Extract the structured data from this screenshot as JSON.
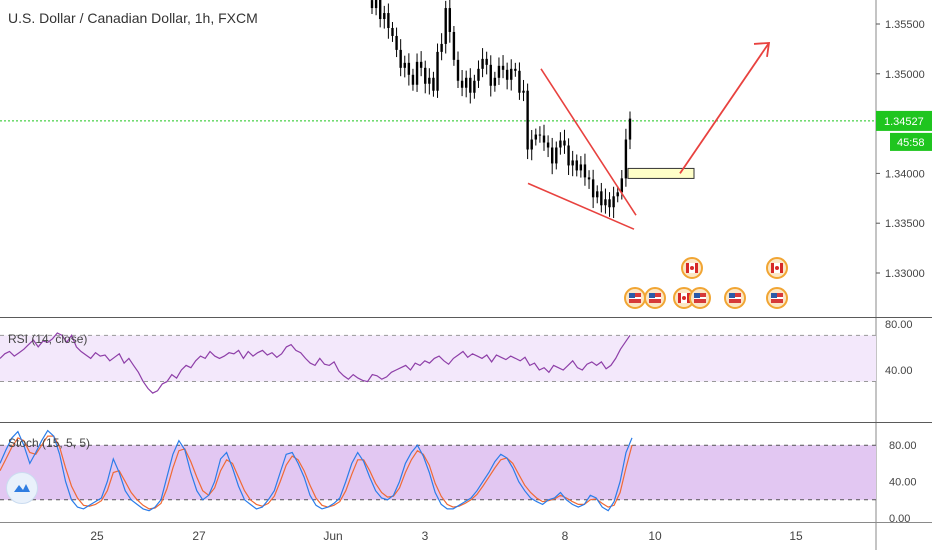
{
  "header": {
    "title": "U.S. Dollar / Canadian Dollar, 1h, FXCM"
  },
  "indicators": {
    "rsi_label": "RSI (14, close)",
    "stoch_label": "Stoch (15, 5, 5)"
  },
  "price_badge": {
    "price": "1.34527",
    "countdown": "45:58"
  },
  "colors": {
    "candle": "#000000",
    "trend": "#e8423f",
    "rsi_line": "#8e3fa8",
    "rsi_band": "#f3e8fb",
    "stoch_band": "#e2c7f2",
    "k_line": "#2b7de9",
    "d_line": "#f06a35",
    "price_line": "#1fc51f",
    "zone_fill": "#ffffc8"
  },
  "chart_data": [
    {
      "type": "candlestick",
      "title": "U.S. Dollar / Canadian Dollar, 1h, FXCM",
      "y_ticks": [
        "1.35500",
        "1.35000",
        "1.34000",
        "1.33500",
        "1.33000"
      ],
      "x_ticks": [
        "25",
        "27",
        "Jun",
        "3",
        "8",
        "10",
        "15"
      ],
      "last_price": 1.34527,
      "ylim": [
        1.3265,
        1.3575
      ],
      "grid": false,
      "description_marks": {
        "falling_wedge": {
          "upper": [
            [
              1.3505,
              "Jun 7"
            ],
            [
              1.3358,
              "Jun 9"
            ]
          ],
          "lower": [
            [
              1.339,
              "Jun 7"
            ],
            [
              1.3344,
              "Jun 9"
            ]
          ]
        },
        "projection_arrow": {
          "from": 1.34,
          "to": 1.3531
        },
        "support_zone": [
          1.3395,
          1.3405
        ]
      },
      "closes": [
        1.3566,
        1.3578,
        1.3555,
        1.3561,
        1.3546,
        1.3538,
        1.3524,
        1.3506,
        1.3511,
        1.3499,
        1.3489,
        1.3512,
        1.3506,
        1.349,
        1.3496,
        1.3483,
        1.3522,
        1.353,
        1.3566,
        1.3542,
        1.3514,
        1.3493,
        1.3486,
        1.3496,
        1.3481,
        1.3493,
        1.3505,
        1.3515,
        1.3509,
        1.3488,
        1.3496,
        1.3508,
        1.3504,
        1.3494,
        1.3505,
        1.3503,
        1.3481,
        1.3483,
        1.3424,
        1.3434,
        1.3439,
        1.3438,
        1.3431,
        1.3426,
        1.341,
        1.3426,
        1.3433,
        1.3428,
        1.3408,
        1.3413,
        1.3403,
        1.3409,
        1.3396,
        1.3394,
        1.3376,
        1.3382,
        1.3368,
        1.3374,
        1.3366,
        1.3377,
        1.3381,
        1.3395,
        1.3434,
        1.3455
      ],
      "rsi": {
        "label": "RSI (14, close)",
        "y_ticks": [
          "80.00",
          "40.00"
        ],
        "band": [
          30,
          70
        ],
        "values": [
          50,
          54,
          56,
          52,
          55,
          58,
          62,
          66,
          60,
          65,
          64,
          67,
          72,
          70,
          64,
          70,
          60,
          56,
          53,
          50,
          55,
          52,
          53,
          48,
          51,
          54,
          46,
          50,
          44,
          38,
          30,
          24,
          20,
          22,
          28,
          30,
          36,
          33,
          40,
          44,
          42,
          48,
          52,
          50,
          56,
          52,
          50,
          52,
          55,
          54,
          57,
          50,
          56,
          52,
          55,
          57,
          53,
          55,
          51,
          54,
          60,
          62,
          57,
          55,
          50,
          46,
          44,
          50,
          45,
          44,
          47,
          39,
          35,
          32,
          36,
          33,
          31,
          30,
          36,
          35,
          32,
          34,
          38,
          40,
          42,
          44,
          40,
          46,
          44,
          48,
          46,
          50,
          52,
          48,
          45,
          50,
          53,
          56,
          51,
          54,
          52,
          50,
          53,
          47,
          53,
          51,
          49,
          52,
          50,
          48,
          51,
          44,
          46,
          40,
          42,
          38,
          44,
          42,
          40,
          44,
          48,
          42,
          40,
          45,
          47,
          44,
          47,
          41,
          44,
          50,
          58,
          64,
          70
        ]
      },
      "stoch": {
        "label": "Stoch (15, 5, 5)",
        "y_ticks": [
          "80.00",
          "40.00",
          "0.00"
        ],
        "band": [
          20,
          80
        ],
        "k": [
          60,
          75,
          88,
          95,
          80,
          60,
          72,
          85,
          96,
          90,
          70,
          40,
          20,
          12,
          10,
          14,
          18,
          22,
          40,
          65,
          50,
          30,
          20,
          15,
          10,
          8,
          12,
          20,
          45,
          70,
          85,
          75,
          50,
          30,
          20,
          25,
          40,
          65,
          72,
          55,
          35,
          20,
          15,
          10,
          12,
          20,
          30,
          50,
          70,
          72,
          60,
          45,
          25,
          14,
          10,
          12,
          16,
          22,
          40,
          60,
          72,
          62,
          45,
          30,
          22,
          20,
          25,
          40,
          60,
          72,
          80,
          68,
          50,
          28,
          15,
          10,
          10,
          14,
          18,
          22,
          30,
          40,
          50,
          62,
          70,
          66,
          55,
          40,
          30,
          22,
          18,
          15,
          20,
          22,
          28,
          20,
          15,
          12,
          15,
          25,
          22,
          12,
          8,
          18,
          40,
          72,
          88
        ],
        "d": [
          52,
          65,
          78,
          88,
          85,
          72,
          70,
          80,
          90,
          90,
          78,
          55,
          35,
          22,
          14,
          13,
          15,
          19,
          30,
          50,
          52,
          40,
          28,
          20,
          14,
          10,
          11,
          16,
          32,
          55,
          74,
          76,
          62,
          45,
          30,
          25,
          33,
          52,
          64,
          60,
          45,
          30,
          20,
          15,
          13,
          16,
          24,
          40,
          58,
          68,
          64,
          52,
          36,
          22,
          14,
          12,
          14,
          18,
          30,
          48,
          64,
          64,
          52,
          38,
          28,
          23,
          24,
          33,
          50,
          64,
          74,
          70,
          58,
          38,
          24,
          15,
          12,
          13,
          16,
          20,
          26,
          35,
          45,
          55,
          64,
          66,
          60,
          48,
          36,
          28,
          22,
          18,
          19,
          21,
          25,
          22,
          18,
          15,
          15,
          20,
          21,
          16,
          12,
          14,
          28,
          55,
          80
        ]
      }
    }
  ]
}
